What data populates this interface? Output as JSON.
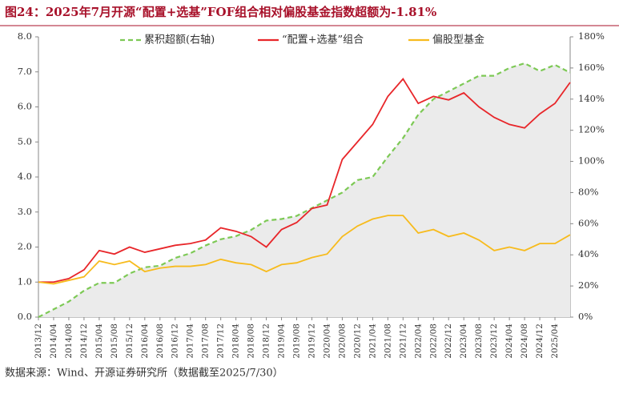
{
  "chart_data": {
    "type": "line",
    "title": "图24：2025年7月开源“配置+选基”FOF组合相对偏股基金指数超额为-1.81%",
    "source": "数据来源：Wind、开源证券研究所（数据截至2025/7/30）",
    "legend": "top",
    "categories": [
      "2013/12",
      "2014/04",
      "2014/08",
      "2014/12",
      "2015/04",
      "2015/08",
      "2015/12",
      "2016/04",
      "2016/08",
      "2016/12",
      "2017/04",
      "2017/08",
      "2017/12",
      "2018/04",
      "2018/08",
      "2018/12",
      "2019/04",
      "2019/08",
      "2019/12",
      "2020/04",
      "2020/08",
      "2020/12",
      "2021/04",
      "2021/08",
      "2021/12",
      "2022/04",
      "2022/08",
      "2022/12",
      "2023/04",
      "2023/08",
      "2023/12",
      "2024/04",
      "2024/08",
      "2024/12",
      "2025/04",
      null
    ],
    "series": [
      {
        "name": "累积超额(右轴)",
        "color": "#7dc955",
        "axis": "y2",
        "area": "#ebebeb",
        "dashed": true,
        "values": [
          0,
          5,
          10,
          17,
          22,
          22,
          28,
          32,
          33,
          38,
          41,
          46,
          50,
          52,
          56,
          62,
          63,
          65,
          70,
          75,
          80,
          88,
          90,
          103,
          115,
          130,
          140,
          145,
          150,
          155,
          155,
          160,
          163,
          158,
          162,
          157
        ]
      },
      {
        "name": "“配置+选基”组合",
        "color": "#e8262a",
        "values": [
          1.0,
          1.0,
          1.1,
          1.35,
          1.9,
          1.8,
          2.0,
          1.85,
          1.95,
          2.05,
          2.1,
          2.2,
          2.55,
          2.45,
          2.3,
          2.0,
          2.5,
          2.7,
          3.1,
          3.2,
          4.5,
          5.0,
          5.5,
          6.3,
          6.8,
          6.1,
          6.3,
          6.2,
          6.4,
          6.0,
          5.7,
          5.5,
          5.4,
          5.8,
          6.1,
          6.7
        ]
      },
      {
        "name": "偏股型基金",
        "color": "#f7bb1d",
        "values": [
          1.0,
          0.95,
          1.05,
          1.15,
          1.6,
          1.5,
          1.6,
          1.3,
          1.4,
          1.45,
          1.45,
          1.5,
          1.65,
          1.55,
          1.5,
          1.3,
          1.5,
          1.55,
          1.7,
          1.8,
          2.3,
          2.6,
          2.8,
          2.9,
          2.9,
          2.4,
          2.5,
          2.3,
          2.4,
          2.2,
          1.9,
          2.0,
          1.9,
          2.1,
          2.1,
          2.35
        ]
      }
    ],
    "ylim": [
      0,
      8
    ],
    "yticks": [
      {
        "value": 0,
        "label": "0.0"
      },
      {
        "value": 1,
        "label": "1.0"
      },
      {
        "value": 2,
        "label": "2.0"
      },
      {
        "value": 3,
        "label": "3.0"
      },
      {
        "value": 4,
        "label": "4.0"
      },
      {
        "value": 5,
        "label": "5.0"
      },
      {
        "value": 6,
        "label": "6.0"
      },
      {
        "value": 7,
        "label": "7.0"
      },
      {
        "value": 8,
        "label": "8.0"
      }
    ],
    "y2lim": [
      0,
      180
    ],
    "y2ticks": [
      {
        "value": 0,
        "label": "0%"
      },
      {
        "value": 20,
        "label": "20%"
      },
      {
        "value": 40,
        "label": "40%"
      },
      {
        "value": 60,
        "label": "60%"
      },
      {
        "value": 80,
        "label": "80%"
      },
      {
        "value": 100,
        "label": "100%"
      },
      {
        "value": 120,
        "label": "120%"
      },
      {
        "value": 140,
        "label": "140%"
      },
      {
        "value": 160,
        "label": "160%"
      },
      {
        "value": 180,
        "label": "180%"
      }
    ]
  }
}
